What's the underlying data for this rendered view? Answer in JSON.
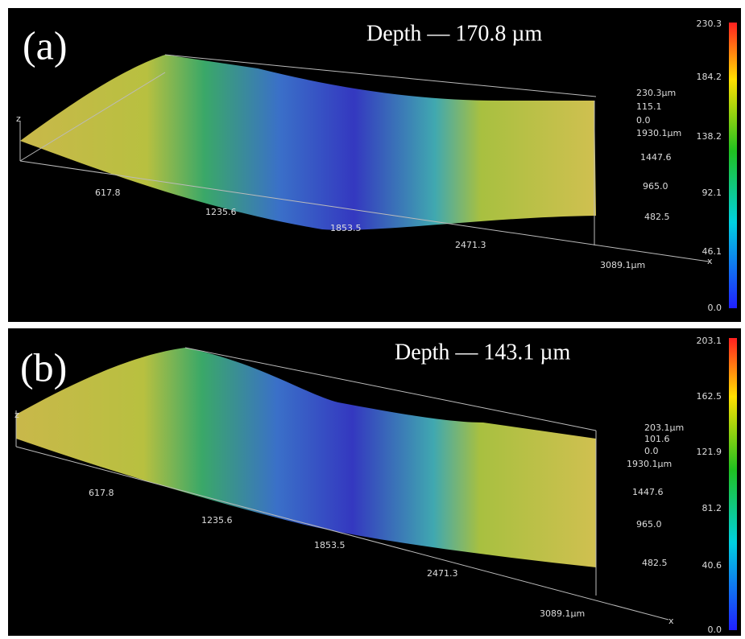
{
  "panels": [
    {
      "label": "(a)",
      "title": "Depth — 170.8 µm",
      "colorbar_ticks": [
        "230.3",
        "184.2",
        "138.2",
        "92.1",
        "46.1",
        "0.0"
      ],
      "z_labels": [
        "230.3µm",
        "115.1",
        "0.0"
      ],
      "y_labels": [
        "1930.1µm",
        "1447.6",
        "965.0",
        "482.5"
      ],
      "x_labels": [
        "617.8",
        "1235.6",
        "1853.5",
        "2471.3",
        "3089.1µm"
      ],
      "axis_z": "z",
      "axis_x": "x"
    },
    {
      "label": "(b)",
      "title": "Depth — 143.1 µm",
      "colorbar_ticks": [
        "203.1",
        "162.5",
        "121.9",
        "81.2",
        "40.6",
        "0.0"
      ],
      "z_labels": [
        "203.1µm",
        "101.6",
        "0.0"
      ],
      "y_labels": [
        "1930.1µm",
        "1447.6",
        "965.0",
        "482.5"
      ],
      "x_labels": [
        "617.8",
        "1235.6",
        "1853.5",
        "2471.3",
        "3089.1µm"
      ],
      "axis_z": "z",
      "axis_x": "x"
    }
  ]
}
